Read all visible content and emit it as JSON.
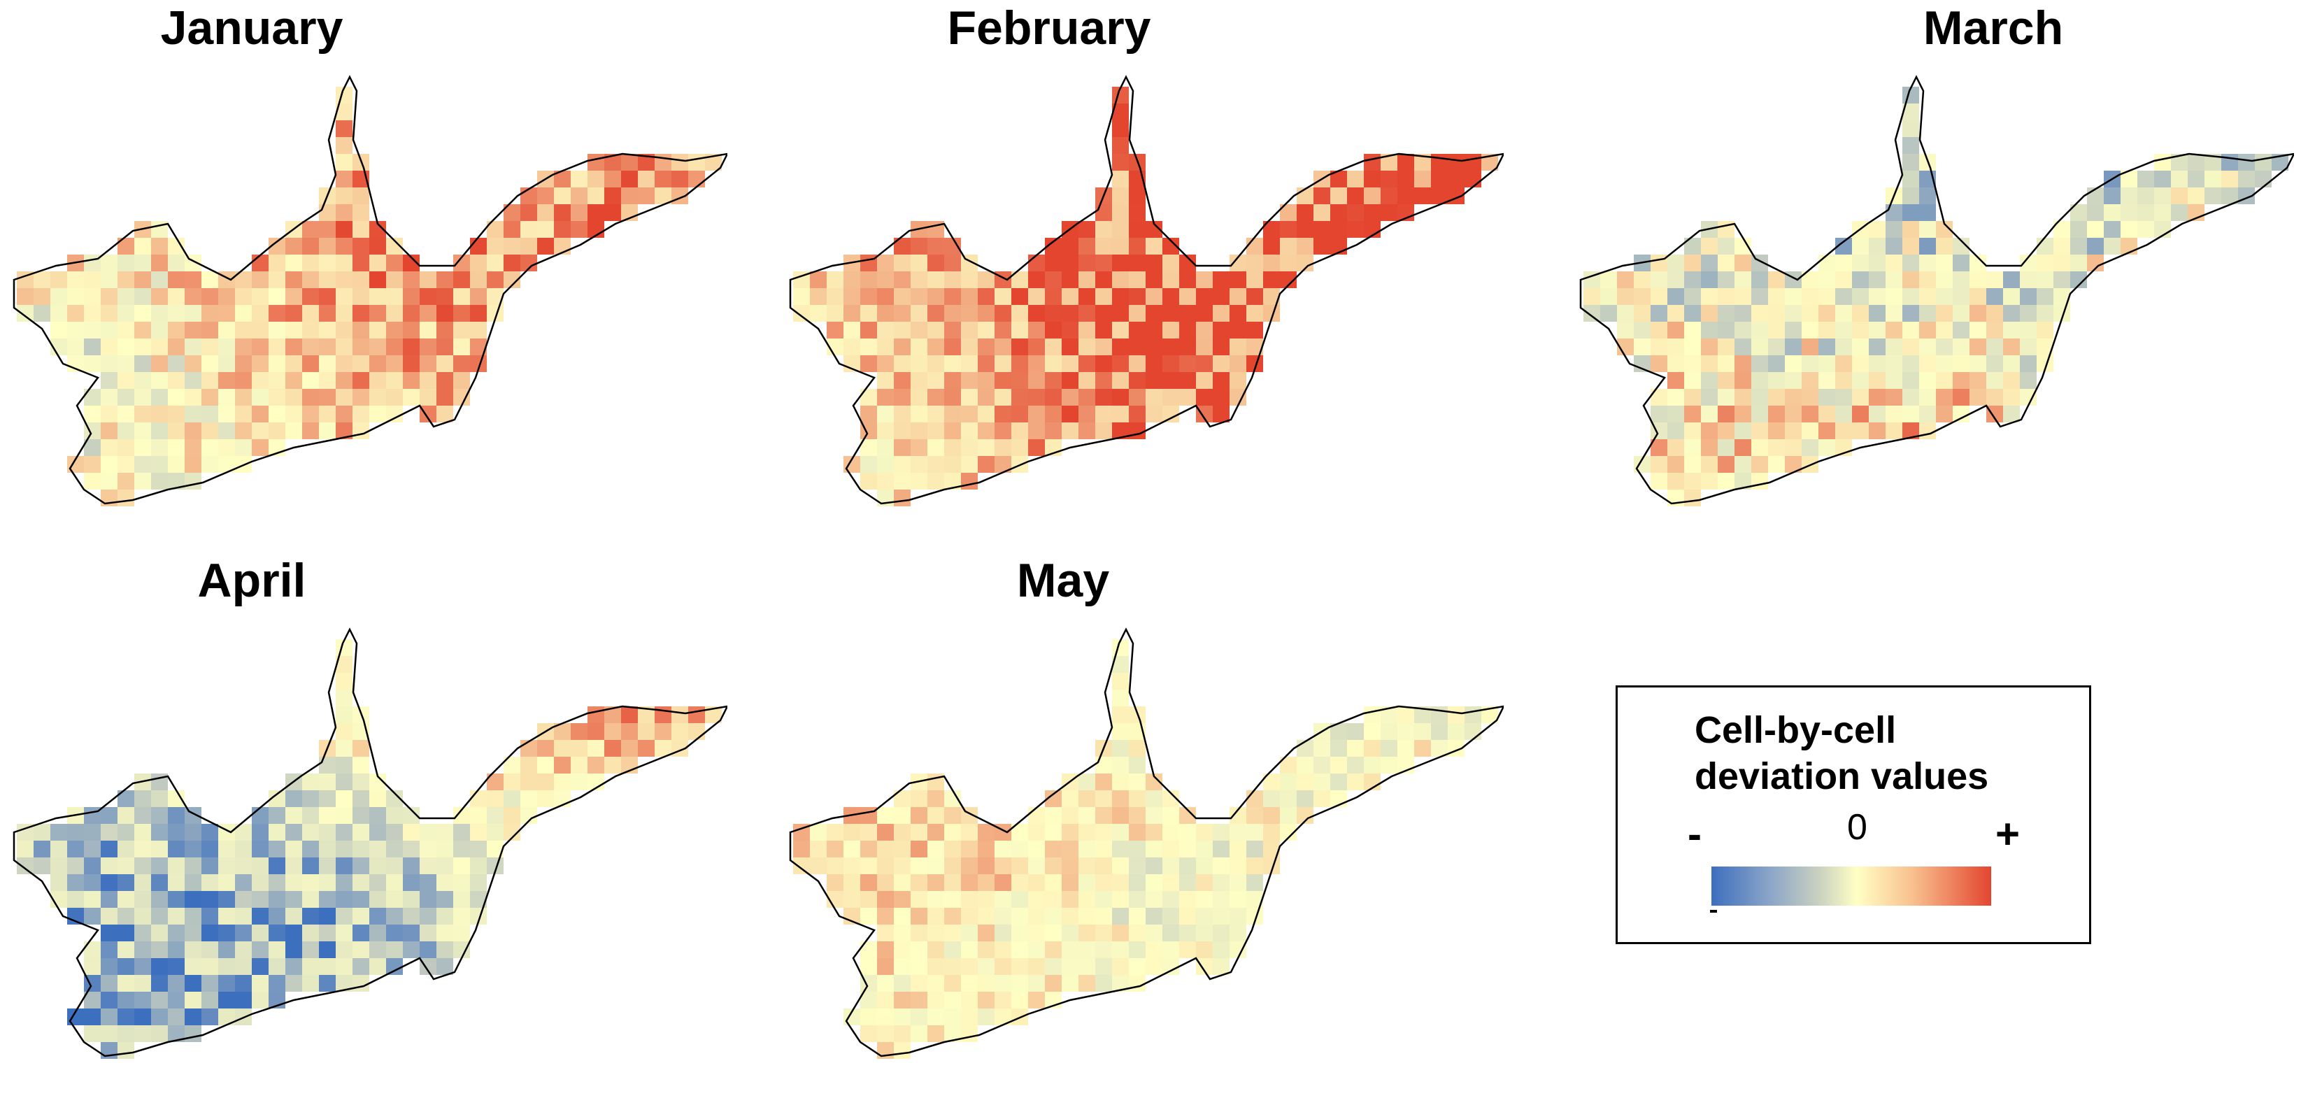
{
  "months": [
    {
      "title": "January",
      "seed": 11,
      "bias": 0.22,
      "spread": 0.42,
      "hot": [
        0.55,
        0.45
      ],
      "cold": [
        0.2,
        0.62
      ]
    },
    {
      "title": "February",
      "seed": 23,
      "bias": 0.55,
      "spread": 0.3,
      "hot": [
        0.55,
        0.55
      ],
      "cold": [
        0.1,
        0.8
      ]
    },
    {
      "title": "March",
      "seed": 37,
      "bias": -0.1,
      "spread": 0.55,
      "hot": [
        0.45,
        0.8
      ],
      "cold": [
        0.45,
        0.55
      ]
    },
    {
      "title": "April",
      "seed": 41,
      "bias": -0.25,
      "spread": 0.32,
      "hot": [
        0.8,
        0.2
      ],
      "cold": [
        0.4,
        0.65
      ]
    },
    {
      "title": "May",
      "seed": 53,
      "bias": -0.05,
      "spread": 0.3,
      "hot": [
        0.3,
        0.55
      ],
      "cold": [
        0.45,
        0.62
      ]
    }
  ],
  "legend": {
    "title_line1": "Cell-by-cell",
    "title_line2": "deviation values",
    "minus": "-",
    "zero": "0",
    "plus": "+"
  },
  "colors": {
    "negative": "#3d6fbf",
    "neutral": "#ffffc4",
    "positive": "#e3452f",
    "outline": "#000000"
  }
}
